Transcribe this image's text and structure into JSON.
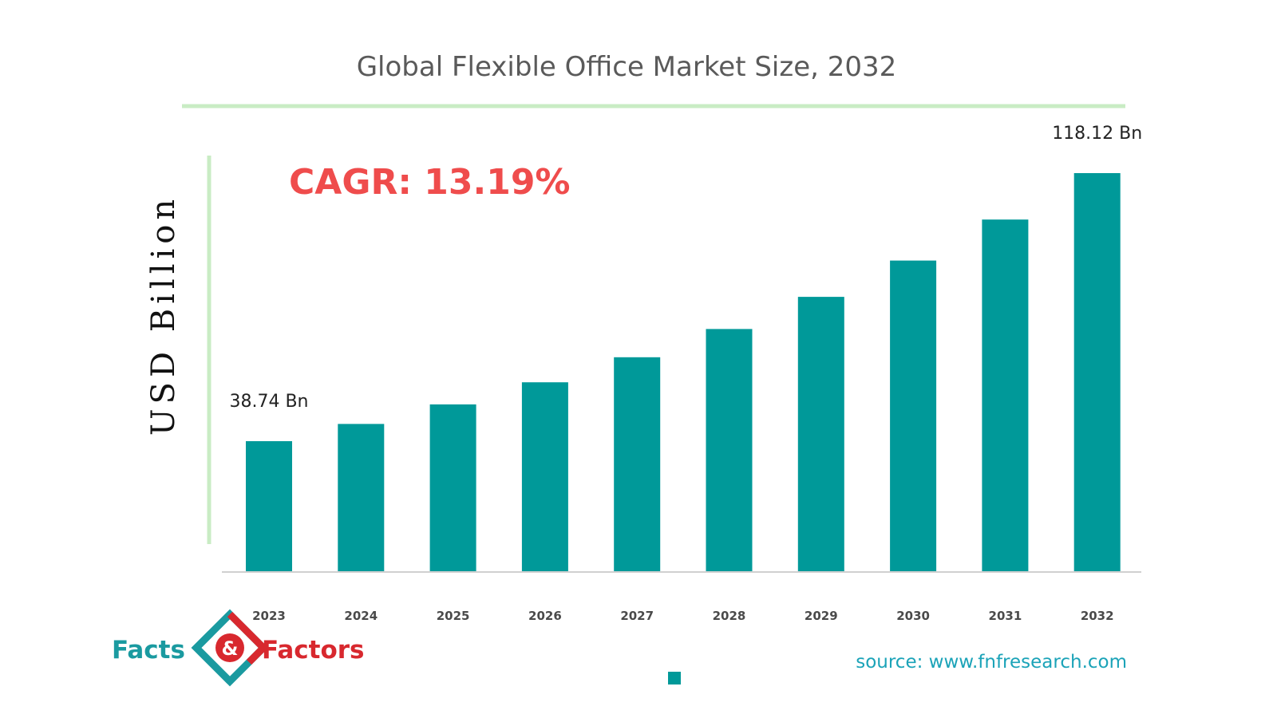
{
  "chart_data": {
    "type": "bar",
    "title": "Global Flexible Office Market Size, 2032",
    "ylabel": "USD Billion",
    "xlabel": "",
    "categories": [
      "2023",
      "2024",
      "2025",
      "2026",
      "2027",
      "2028",
      "2029",
      "2030",
      "2031",
      "2032"
    ],
    "values": [
      38.74,
      43.85,
      49.63,
      56.18,
      63.59,
      71.97,
      81.47,
      92.22,
      104.38,
      118.12
    ],
    "data_labels": [
      {
        "category": "2023",
        "text": "38.74 Bn"
      },
      {
        "category": "2032",
        "text": "118.12 Bn"
      }
    ],
    "annotation": "CAGR: 13.19%",
    "ylim": [
      0,
      130
    ],
    "grid": false,
    "legend": "bottom-center",
    "bar_color": "#009999"
  },
  "source": "source: www.fnfresearch.com",
  "logo": {
    "left_word": "Facts",
    "ampersand": "&",
    "right_word": "Factors",
    "colors": {
      "teal": "#1a9aa0",
      "red": "#d8282e"
    }
  },
  "colors": {
    "title": "#5a5a5a",
    "accent_line": "#c9ecc4",
    "cagr": "#ef4c4c",
    "bar": "#009999",
    "source": "#1ba3b8"
  }
}
